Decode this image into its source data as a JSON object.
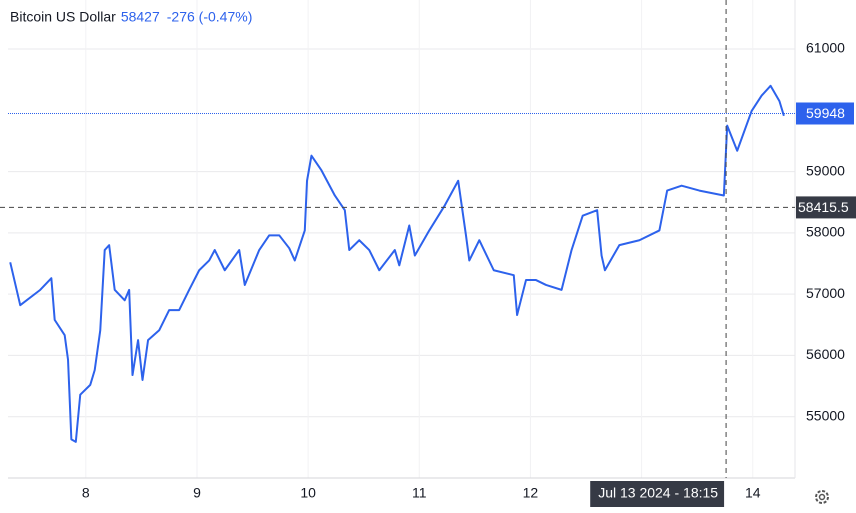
{
  "chart_data": {
    "type": "line",
    "title": "Bitcoin US Dollar",
    "last": "58427",
    "change": "-276 (-0.47%)",
    "x": [
      7.32,
      7.41,
      7.59,
      7.69,
      7.72,
      7.81,
      7.84,
      7.87,
      7.91,
      7.95,
      8.04,
      8.08,
      8.13,
      8.17,
      8.21,
      8.26,
      8.35,
      8.39,
      8.42,
      8.47,
      8.51,
      8.56,
      8.66,
      8.75,
      8.84,
      8.93,
      9.02,
      9.11,
      9.16,
      9.25,
      9.38,
      9.43,
      9.56,
      9.65,
      9.74,
      9.83,
      9.88,
      9.97,
      9.99,
      10.03,
      10.12,
      10.24,
      10.33,
      10.37,
      10.46,
      10.55,
      10.64,
      10.78,
      10.82,
      10.91,
      10.96,
      11.09,
      11.23,
      11.35,
      11.42,
      11.45,
      11.54,
      11.67,
      11.85,
      11.88,
      11.96,
      12.05,
      12.14,
      12.28,
      12.37,
      12.47,
      12.6,
      12.64,
      12.67,
      12.8,
      12.98,
      13.16,
      13.23,
      13.36,
      13.52,
      13.74,
      13.77,
      13.86,
      13.99,
      14.08,
      14.16,
      14.24,
      14.28
    ],
    "series": [
      {
        "name": "Bitcoin US Dollar",
        "color": "#2d62ec",
        "values": [
          57520,
          56820,
          57070,
          57260,
          56580,
          56330,
          55930,
          54630,
          54590,
          55360,
          55520,
          55760,
          56410,
          57720,
          57800,
          57070,
          56900,
          57070,
          55680,
          56250,
          55600,
          56250,
          56410,
          56740,
          56740,
          57070,
          57390,
          57550,
          57720,
          57390,
          57720,
          57150,
          57720,
          57960,
          57960,
          57750,
          57550,
          58040,
          58850,
          59260,
          59020,
          58610,
          58370,
          57720,
          57880,
          57720,
          57390,
          57720,
          57470,
          58120,
          57630,
          58040,
          58450,
          58850,
          57960,
          57550,
          57880,
          57390,
          57310,
          56660,
          57230,
          57230,
          57150,
          57070,
          57720,
          58280,
          58370,
          57630,
          57390,
          57800,
          57880,
          58040,
          58690,
          58770,
          58690,
          58610,
          59750,
          59340,
          59990,
          60240,
          60400,
          60150,
          59910
        ]
      }
    ],
    "xlim": [
      7.3,
      14.38
    ],
    "xticks": [
      8,
      9,
      10,
      11,
      12,
      13,
      14
    ],
    "ylim": [
      54000,
      61800
    ],
    "yticks": [
      55000,
      56000,
      57000,
      58000,
      59000,
      61000
    ],
    "grid": true,
    "price_line": 59948,
    "crosshair": {
      "x": 13.76,
      "x_label": "Jul 13 2024 - 18:15",
      "y": 58415.5
    }
  }
}
